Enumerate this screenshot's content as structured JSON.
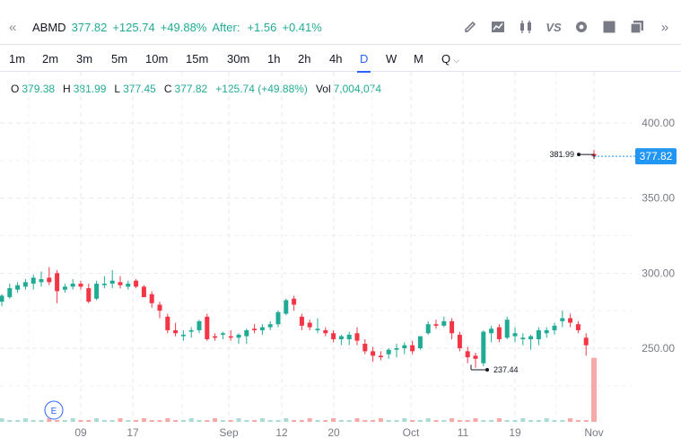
{
  "header": {
    "symbol": "ABMD",
    "price": "377.82",
    "change": "+125.74",
    "change_pct": "+49.88%",
    "after_label": "After:",
    "after_change": "+1.56",
    "after_pct": "+0.41%",
    "icons": [
      "double-chevron-left-icon",
      "pencil-icon",
      "area-chart-icon",
      "candlestick-icon",
      "compare-vs-icon",
      "settings-icon",
      "square-icon",
      "layers-icon",
      "double-chevron-right-icon"
    ],
    "vs_label": "VS"
  },
  "intervals": {
    "items": [
      "1m",
      "2m",
      "3m",
      "5m",
      "10m",
      "15m",
      "30m",
      "1h",
      "2h",
      "4h",
      "D",
      "W",
      "M",
      "Q"
    ],
    "active": "D"
  },
  "ohlc": {
    "o_label": "O",
    "o": "379.38",
    "h_label": "H",
    "h": "381.99",
    "l_label": "L",
    "l": "377.45",
    "c_label": "C",
    "c": "377.82",
    "chg": "+125.74 (+49.88%)",
    "vol_label": "Vol",
    "vol": "7,004,074"
  },
  "chart_data": {
    "type": "candlestick",
    "y_axis_ticks": [
      "400.00",
      "350.00",
      "300.00",
      "250.00"
    ],
    "ylim": [
      200,
      425
    ],
    "x_tick_labels": [
      "09",
      "17",
      "Sep",
      "12",
      "20",
      "Oct",
      "11",
      "19",
      "Nov"
    ],
    "last_price_label": "377.82",
    "high_annotation": "381.99",
    "low_annotation": "237.44",
    "event_marker": "E",
    "colors": {
      "up": "#22ab94",
      "down": "#f23645",
      "grid": "#e8e9ec",
      "last_price": "#2196f3"
    },
    "candles": [
      [
        281,
        286,
        278,
        285
      ],
      [
        284,
        293,
        283,
        290
      ],
      [
        289,
        294,
        287,
        292
      ],
      [
        291,
        296,
        289,
        294
      ],
      [
        293,
        299,
        289,
        297
      ],
      [
        294,
        301,
        291,
        296
      ],
      [
        297,
        304,
        292,
        294
      ],
      [
        300,
        302,
        280,
        288
      ],
      [
        289,
        293,
        287,
        291
      ],
      [
        291,
        296,
        289,
        293
      ],
      [
        293,
        295,
        289,
        291
      ],
      [
        290,
        293,
        280,
        281
      ],
      [
        283,
        295,
        282,
        293
      ],
      [
        292,
        298,
        290,
        293
      ],
      [
        293,
        302,
        290,
        295
      ],
      [
        294,
        298,
        290,
        292
      ],
      [
        291,
        295,
        289,
        293
      ],
      [
        295,
        296,
        290,
        291
      ],
      [
        291,
        292,
        285,
        284
      ],
      [
        286,
        288,
        277,
        280
      ],
      [
        279,
        281,
        270,
        275
      ],
      [
        271,
        273,
        260,
        262
      ],
      [
        262,
        267,
        258,
        260
      ],
      [
        258,
        262,
        255,
        259
      ],
      [
        261,
        264,
        257,
        262
      ],
      [
        262,
        269,
        260,
        268
      ],
      [
        271,
        273,
        255,
        256
      ],
      [
        258,
        260,
        255,
        257
      ],
      [
        259,
        261,
        256,
        260
      ],
      [
        258,
        262,
        255,
        257
      ],
      [
        257,
        260,
        253,
        259
      ],
      [
        258,
        263,
        253,
        262
      ],
      [
        263,
        266,
        260,
        262
      ],
      [
        262,
        266,
        259,
        264
      ],
      [
        264,
        268,
        262,
        266
      ],
      [
        266,
        275,
        264,
        274
      ],
      [
        273,
        283,
        272,
        282
      ],
      [
        283,
        285,
        275,
        279
      ],
      [
        271,
        273,
        262,
        265
      ],
      [
        267,
        269,
        262,
        264
      ],
      [
        262,
        270,
        260,
        263
      ],
      [
        262,
        264,
        258,
        260
      ],
      [
        260,
        262,
        254,
        256
      ],
      [
        256,
        259,
        252,
        258
      ],
      [
        256,
        261,
        252,
        259
      ],
      [
        260,
        264,
        252,
        255
      ],
      [
        253,
        256,
        246,
        248
      ],
      [
        248,
        251,
        241,
        245
      ],
      [
        245,
        248,
        242,
        244
      ],
      [
        246,
        250,
        243,
        249
      ],
      [
        249,
        253,
        244,
        250
      ],
      [
        250,
        254,
        246,
        252
      ],
      [
        252,
        255,
        246,
        248
      ],
      [
        250,
        258,
        249,
        258
      ],
      [
        260,
        268,
        259,
        266
      ],
      [
        266,
        269,
        263,
        265
      ],
      [
        265,
        271,
        264,
        268
      ],
      [
        268,
        270,
        256,
        260
      ],
      [
        259,
        261,
        248,
        250
      ],
      [
        248,
        251,
        240,
        244
      ],
      [
        245,
        247,
        237,
        243
      ],
      [
        240,
        262,
        238,
        261
      ],
      [
        260,
        265,
        254,
        263
      ],
      [
        264,
        266,
        254,
        256
      ],
      [
        257,
        271,
        256,
        269
      ],
      [
        258,
        264,
        254,
        260
      ],
      [
        256,
        260,
        252,
        257
      ],
      [
        256,
        259,
        249,
        258
      ],
      [
        256,
        264,
        252,
        262
      ],
      [
        260,
        264,
        257,
        262
      ],
      [
        262,
        267,
        259,
        265
      ],
      [
        268,
        275,
        264,
        270
      ],
      [
        270,
        273,
        264,
        267
      ],
      [
        266,
        268,
        260,
        262
      ],
      [
        257,
        260,
        245,
        252
      ],
      [
        379.38,
        381.99,
        377.45,
        377.82
      ]
    ],
    "volume_last_bar_fraction": 0.95
  }
}
